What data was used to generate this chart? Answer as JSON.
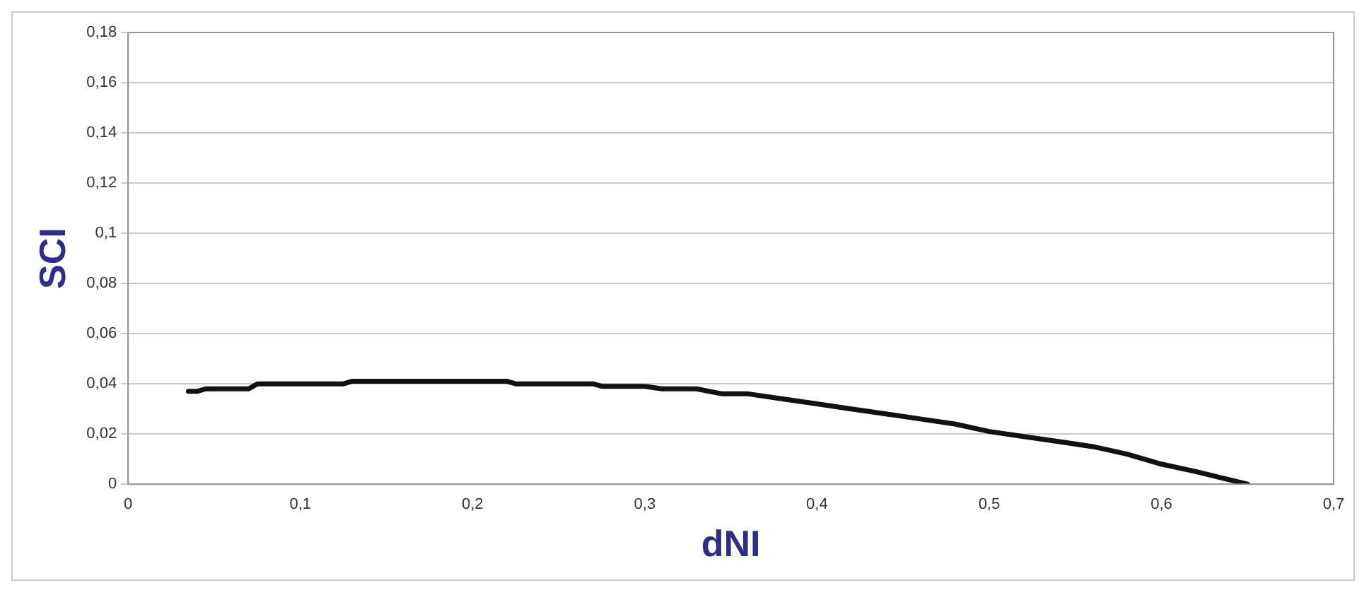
{
  "chart_data": {
    "type": "line",
    "xlabel": "dNI",
    "ylabel": "SCI",
    "x": [
      0.035,
      0.04,
      0.045,
      0.07,
      0.075,
      0.125,
      0.13,
      0.22,
      0.225,
      0.27,
      0.275,
      0.3,
      0.31,
      0.33,
      0.345,
      0.36,
      0.38,
      0.4,
      0.42,
      0.44,
      0.46,
      0.48,
      0.5,
      0.52,
      0.54,
      0.56,
      0.58,
      0.6,
      0.62,
      0.65
    ],
    "series": [
      {
        "color": "#111111",
        "values": [
          0.037,
          0.037,
          0.038,
          0.038,
          0.04,
          0.04,
          0.041,
          0.041,
          0.04,
          0.04,
          0.039,
          0.039,
          0.038,
          0.038,
          0.036,
          0.036,
          0.034,
          0.032,
          0.03,
          0.028,
          0.026,
          0.024,
          0.021,
          0.019,
          0.017,
          0.015,
          0.012,
          0.008,
          0.005,
          0
        ]
      }
    ],
    "xlim": [
      0,
      0.7
    ],
    "ylim": [
      0,
      0.18
    ],
    "xticks": [
      0,
      {
        "value": 0.1,
        "label": "0,1"
      },
      {
        "value": 0.2,
        "label": "0,2"
      },
      {
        "value": 0.3,
        "label": "0,3"
      },
      {
        "value": 0.4,
        "label": "0,4"
      },
      {
        "value": 0.5,
        "label": "0,5"
      },
      {
        "value": 0.6,
        "label": "0,6"
      },
      {
        "value": 0.7,
        "label": "0,7"
      }
    ],
    "yticks": [
      0,
      {
        "value": 0.02,
        "label": "0,02"
      },
      {
        "value": 0.04,
        "label": "0,04"
      },
      {
        "value": 0.06,
        "label": "0,06"
      },
      {
        "value": 0.08,
        "label": "0,08"
      },
      {
        "value": 0.1,
        "label": "0,1"
      },
      {
        "value": 0.12,
        "label": "0,12"
      },
      {
        "value": 0.14,
        "label": "0,14"
      },
      {
        "value": 0.16,
        "label": "0,16"
      },
      {
        "value": 0.18,
        "label": "0,18"
      }
    ],
    "grid": "y",
    "marker": "none",
    "line_style": "solid",
    "legend": false
  }
}
